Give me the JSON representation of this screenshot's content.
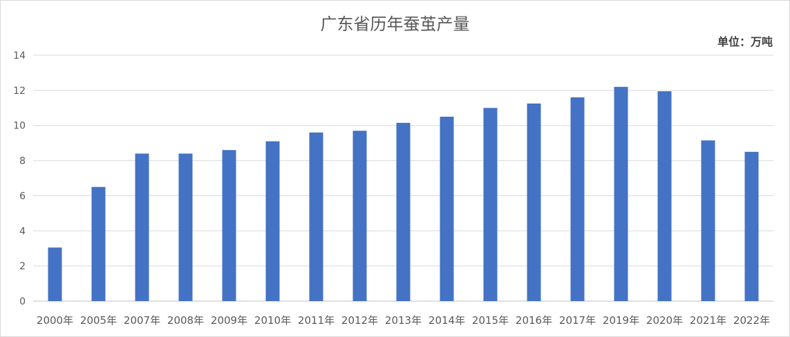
{
  "chart_data": {
    "type": "bar",
    "title": "广东省历年蚕茧产量",
    "unit_label": "单位：万吨",
    "xlabel": "",
    "ylabel": "",
    "ylim": [
      0,
      14
    ],
    "yticks": [
      0,
      2,
      4,
      6,
      8,
      10,
      12,
      14
    ],
    "grid": true,
    "bar_color": "#4472c4",
    "categories": [
      "2000年",
      "2005年",
      "2007年",
      "2008年",
      "2009年",
      "2010年",
      "2011年",
      "2012年",
      "2013年",
      "2014年",
      "2015年",
      "2016年",
      "2017年",
      "2019年",
      "2020年",
      "2021年",
      "2022年"
    ],
    "values": [
      3.05,
      6.5,
      8.4,
      8.4,
      8.6,
      9.1,
      9.6,
      9.7,
      10.15,
      10.5,
      11.0,
      11.25,
      11.6,
      12.2,
      11.95,
      9.15,
      8.5
    ]
  }
}
